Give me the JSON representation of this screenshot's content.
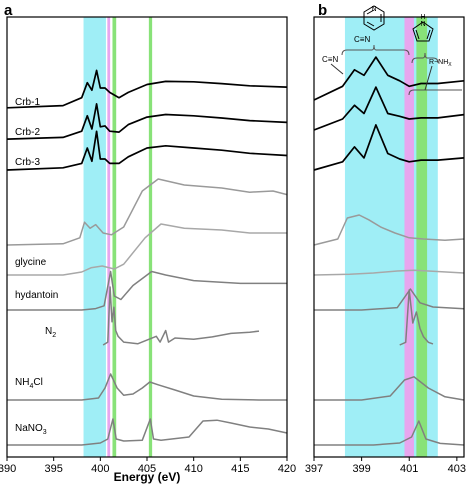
{
  "chart_data": [
    {
      "panel_label": "a",
      "type": "line",
      "xlabel": "Energy (eV)",
      "xlim": [
        390,
        420
      ],
      "x_ticks": [
        "390",
        "395",
        "400",
        "405",
        "410",
        "415",
        "420"
      ],
      "bands": [
        {
          "x0": 398.2,
          "x1": 400.6,
          "color": "#9feef6"
        },
        {
          "x0": 400.75,
          "x1": 401.05,
          "color": "#e7a6ee"
        },
        {
          "x0": 401.3,
          "x1": 401.7,
          "color": "#88e278"
        },
        {
          "x0": 405.2,
          "x1": 405.55,
          "color": "#88e278"
        }
      ],
      "series": [
        {
          "name": "Crb-1",
          "color": "#000000",
          "values": [
            [
              390,
              0.05
            ],
            [
              396,
              0.1
            ],
            [
              398,
              0.28
            ],
            [
              398.6,
              0.62
            ],
            [
              399.1,
              0.45
            ],
            [
              399.6,
              0.9
            ],
            [
              400,
              0.5
            ],
            [
              400.5,
              0.5
            ],
            [
              401,
              0.4
            ],
            [
              402,
              0.28
            ],
            [
              403,
              0.4
            ],
            [
              405,
              0.58
            ],
            [
              407,
              0.65
            ],
            [
              410,
              0.64
            ],
            [
              413,
              0.6
            ],
            [
              416,
              0.55
            ],
            [
              420,
              0.52
            ]
          ]
        },
        {
          "name": "Crb-2",
          "color": "#000000",
          "values": [
            [
              390,
              0.02
            ],
            [
              396,
              0.06
            ],
            [
              398,
              0.2
            ],
            [
              398.6,
              0.55
            ],
            [
              399.1,
              0.25
            ],
            [
              399.6,
              0.82
            ],
            [
              400,
              0.3
            ],
            [
              400.5,
              0.32
            ],
            [
              401,
              0.2
            ],
            [
              402,
              0.18
            ],
            [
              403,
              0.35
            ],
            [
              405,
              0.52
            ],
            [
              407,
              0.58
            ],
            [
              410,
              0.55
            ],
            [
              413,
              0.5
            ],
            [
              416,
              0.44
            ],
            [
              420,
              0.4
            ]
          ]
        },
        {
          "name": "Crb-3",
          "color": "#000000",
          "values": [
            [
              390,
              0.0
            ],
            [
              396,
              0.05
            ],
            [
              398,
              0.15
            ],
            [
              398.6,
              0.5
            ],
            [
              399.1,
              0.2
            ],
            [
              399.6,
              0.88
            ],
            [
              400,
              0.25
            ],
            [
              400.5,
              0.25
            ],
            [
              401,
              0.15
            ],
            [
              402,
              0.15
            ],
            [
              403,
              0.3
            ],
            [
              405,
              0.5
            ],
            [
              407,
              0.55
            ],
            [
              410,
              0.5
            ],
            [
              413,
              0.45
            ],
            [
              416,
              0.38
            ],
            [
              420,
              0.33
            ]
          ]
        },
        {
          "name": "",
          "color": "#9a9a9a",
          "values": [
            [
              390,
              0.0
            ],
            [
              396,
              0.02
            ],
            [
              397.8,
              0.12
            ],
            [
              398.3,
              0.38
            ],
            [
              398.9,
              0.28
            ],
            [
              399.5,
              0.34
            ],
            [
              400.3,
              0.2
            ],
            [
              401.2,
              0.17
            ],
            [
              402.5,
              0.3
            ],
            [
              404.5,
              0.9
            ],
            [
              406.2,
              1.1
            ],
            [
              409,
              1.0
            ],
            [
              413,
              0.95
            ],
            [
              416,
              0.88
            ],
            [
              418.5,
              0.9
            ],
            [
              420,
              0.84
            ]
          ]
        },
        {
          "name": "glycine",
          "color": "#a8a8a8",
          "values": [
            [
              390,
              0.0
            ],
            [
              396,
              0.0
            ],
            [
              398,
              0.05
            ],
            [
              399,
              0.12
            ],
            [
              400.2,
              0.15
            ],
            [
              401.5,
              0.1
            ],
            [
              402.5,
              0.18
            ],
            [
              404.8,
              0.62
            ],
            [
              406.5,
              0.85
            ],
            [
              409,
              0.78
            ],
            [
              413,
              0.75
            ],
            [
              416,
              0.7
            ],
            [
              420,
              0.7
            ]
          ]
        },
        {
          "name": "hydantoin",
          "color": "#808080",
          "values": [
            [
              390,
              0.0
            ],
            [
              398,
              0.0
            ],
            [
              399.5,
              0.02
            ],
            [
              400.4,
              0.06
            ],
            [
              401.1,
              0.55
            ],
            [
              401.5,
              0.2
            ],
            [
              402.2,
              0.15
            ],
            [
              403.5,
              0.35
            ],
            [
              405.5,
              0.55
            ],
            [
              407,
              0.5
            ],
            [
              410,
              0.42
            ],
            [
              415,
              0.38
            ],
            [
              420,
              0.38
            ]
          ]
        },
        {
          "name": "N2",
          "color": "#808080",
          "values": [
            [
              400.3,
              0.0
            ],
            [
              400.8,
              0.05
            ],
            [
              401.05,
              1.0
            ],
            [
              401.25,
              0.4
            ],
            [
              401.45,
              0.65
            ],
            [
              401.65,
              0.25
            ],
            [
              401.9,
              0.15
            ],
            [
              402.5,
              0.05
            ],
            [
              404,
              0.02
            ],
            [
              406,
              0.15
            ],
            [
              406.4,
              0.05
            ],
            [
              407,
              0.25
            ],
            [
              407.3,
              0.05
            ],
            [
              408,
              0.12
            ],
            [
              410,
              0.1
            ],
            [
              412,
              0.14
            ],
            [
              414,
              0.2
            ],
            [
              416,
              0.22
            ],
            [
              417,
              0.24
            ]
          ]
        },
        {
          "name": "NH4Cl",
          "color": "#808080",
          "values": [
            [
              390,
              0.0
            ],
            [
              398,
              0.0
            ],
            [
              399.8,
              0.05
            ],
            [
              400.5,
              0.3
            ],
            [
              401.1,
              0.65
            ],
            [
              401.8,
              0.3
            ],
            [
              402.5,
              0.12
            ],
            [
              403.5,
              0.15
            ],
            [
              404.5,
              0.3
            ],
            [
              405.3,
              0.45
            ],
            [
              406.2,
              0.38
            ],
            [
              408,
              0.25
            ],
            [
              410,
              0.1
            ],
            [
              413,
              0.02
            ],
            [
              417,
              0.0
            ],
            [
              420,
              0.0
            ]
          ]
        },
        {
          "name": "NaNO3",
          "color": "#808080",
          "values": [
            [
              390,
              0.0
            ],
            [
              398,
              0.0
            ],
            [
              400,
              0.05
            ],
            [
              400.8,
              0.15
            ],
            [
              401.35,
              0.65
            ],
            [
              401.7,
              0.15
            ],
            [
              402.5,
              0.1
            ],
            [
              404.5,
              0.12
            ],
            [
              405.35,
              0.65
            ],
            [
              405.7,
              0.15
            ],
            [
              406.5,
              0.12
            ],
            [
              409.5,
              0.2
            ],
            [
              411,
              0.6
            ],
            [
              412.5,
              0.62
            ],
            [
              414,
              0.55
            ],
            [
              416,
              0.45
            ],
            [
              418,
              0.4
            ],
            [
              420,
              0.3
            ]
          ]
        }
      ]
    },
    {
      "panel_label": "b",
      "type": "line",
      "xlim": [
        397,
        403.3
      ],
      "x_ticks": [
        "397",
        "399",
        "401",
        "403"
      ],
      "bands": [
        {
          "x0": 398.3,
          "x1": 402.2,
          "color": "#9feef6"
        },
        {
          "x0": 400.8,
          "x1": 401.2,
          "color": "#e7a6ee"
        },
        {
          "x0": 401.3,
          "x1": 401.75,
          "color": "#88e278"
        }
      ],
      "annotations": [
        {
          "text": "C≡N",
          "group": "pyridine"
        },
        {
          "text": "C≡N",
          "group": "nitrile"
        },
        {
          "text": "R−NH",
          "sub": "X",
          "group": "amine"
        }
      ],
      "series": [
        {
          "name": "Crb-1",
          "color": "#000000",
          "values": [
            [
              397,
              0.0
            ],
            [
              398.2,
              0.25
            ],
            [
              398.7,
              0.55
            ],
            [
              399.1,
              0.45
            ],
            [
              399.6,
              0.78
            ],
            [
              400.1,
              0.45
            ],
            [
              400.6,
              0.35
            ],
            [
              401.0,
              0.25
            ],
            [
              401.5,
              0.3
            ],
            [
              402.2,
              0.3
            ],
            [
              403.3,
              0.35
            ]
          ]
        },
        {
          "name": "Crb-2",
          "color": "#000000",
          "values": [
            [
              397,
              0.0
            ],
            [
              398.2,
              0.2
            ],
            [
              398.7,
              0.45
            ],
            [
              399.1,
              0.3
            ],
            [
              399.6,
              0.78
            ],
            [
              400.1,
              0.3
            ],
            [
              400.6,
              0.25
            ],
            [
              401.0,
              0.2
            ],
            [
              401.5,
              0.22
            ],
            [
              402.2,
              0.22
            ],
            [
              403.3,
              0.28
            ]
          ]
        },
        {
          "name": "Crb-3",
          "color": "#000000",
          "values": [
            [
              397,
              0.0
            ],
            [
              398.2,
              0.15
            ],
            [
              398.7,
              0.42
            ],
            [
              399.1,
              0.22
            ],
            [
              399.6,
              0.82
            ],
            [
              400.1,
              0.3
            ],
            [
              400.6,
              0.2
            ],
            [
              401.0,
              0.15
            ],
            [
              401.5,
              0.18
            ],
            [
              402.2,
              0.18
            ],
            [
              403.3,
              0.22
            ]
          ]
        },
        {
          "name": "",
          "color": "#9a9a9a",
          "values": [
            [
              397,
              0.0
            ],
            [
              398,
              0.1
            ],
            [
              398.4,
              0.45
            ],
            [
              398.9,
              0.5
            ],
            [
              399.3,
              0.42
            ],
            [
              399.8,
              0.3
            ],
            [
              400.4,
              0.2
            ],
            [
              401.0,
              0.12
            ],
            [
              401.6,
              0.1
            ],
            [
              402.5,
              0.08
            ],
            [
              403.3,
              0.1
            ]
          ]
        },
        {
          "name": "",
          "color": "#a8a8a8",
          "values": [
            [
              397,
              0.0
            ],
            [
              398.5,
              0.02
            ],
            [
              399.5,
              0.05
            ],
            [
              400.5,
              0.1
            ],
            [
              401.2,
              0.12
            ],
            [
              401.8,
              0.1
            ],
            [
              403.3,
              0.05
            ]
          ]
        },
        {
          "name": "",
          "color": "#808080",
          "values": [
            [
              397,
              0.0
            ],
            [
              399,
              0.0
            ],
            [
              400.5,
              0.04
            ],
            [
              401.05,
              0.35
            ],
            [
              401.45,
              0.12
            ],
            [
              402.0,
              0.05
            ],
            [
              403.3,
              0.02
            ]
          ]
        },
        {
          "name": "",
          "color": "#808080",
          "values": [
            [
              400.6,
              0.0
            ],
            [
              400.85,
              0.05
            ],
            [
              401.0,
              1.0
            ],
            [
              401.15,
              0.4
            ],
            [
              401.3,
              0.6
            ],
            [
              401.45,
              0.3
            ],
            [
              401.6,
              0.15
            ],
            [
              401.8,
              0.05
            ],
            [
              402.0,
              0.02
            ]
          ]
        },
        {
          "name": "",
          "color": "#808080",
          "values": [
            [
              397,
              0.0
            ],
            [
              399,
              0.0
            ],
            [
              400.2,
              0.1
            ],
            [
              400.8,
              0.5
            ],
            [
              401.2,
              0.58
            ],
            [
              401.8,
              0.3
            ],
            [
              402.5,
              0.08
            ],
            [
              403.3,
              0.0
            ]
          ]
        },
        {
          "name": "",
          "color": "#808080",
          "values": [
            [
              397,
              0.0
            ],
            [
              399.5,
              0.0
            ],
            [
              400.6,
              0.05
            ],
            [
              401.1,
              0.2
            ],
            [
              401.4,
              0.6
            ],
            [
              401.7,
              0.15
            ],
            [
              402.3,
              0.04
            ],
            [
              403.3,
              0.0
            ]
          ]
        }
      ]
    }
  ]
}
